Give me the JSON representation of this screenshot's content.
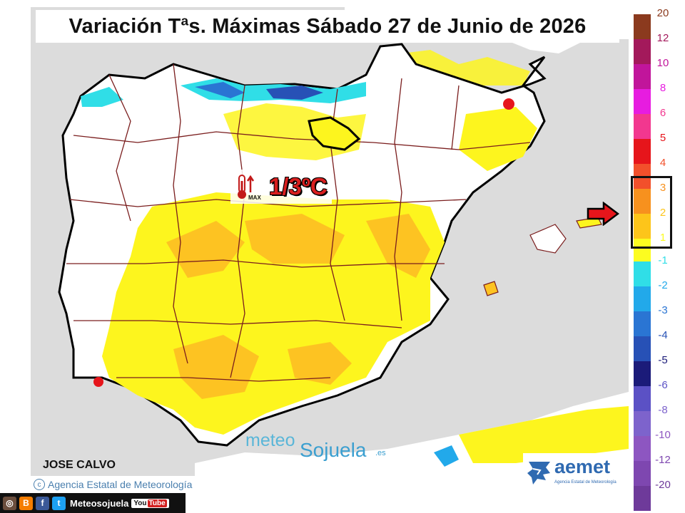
{
  "title": "Variación Tªs. Máximas Sábado 27 de Junio de 2026",
  "badge": {
    "icon": "thermometer-max-icon",
    "icon_label": "MAX",
    "value": "1/3ºC"
  },
  "author": "JOSE CALVO",
  "copyright": {
    "symbol": "c",
    "text": "Agencia Estatal de Meteorología"
  },
  "brand": {
    "part1": "meteo",
    "part2": "Sojuela",
    "suffix": ".es"
  },
  "aemet": {
    "name": "aemet",
    "subtitle": "Agencia Estatal de Meteorología"
  },
  "social": {
    "handle": "Meteosojuela",
    "youtube_you": "You",
    "youtube_tube": "Tube",
    "icons": [
      "instagram-icon",
      "blogger-icon",
      "facebook-icon",
      "twitter-icon",
      "youtube-icon"
    ]
  },
  "legend_warm": [
    {
      "label": "20",
      "color": "#8b3a1e"
    },
    {
      "label": "12",
      "color": "#a3195b"
    },
    {
      "label": "10",
      "color": "#c1159b"
    },
    {
      "label": "8",
      "color": "#e71ce0"
    },
    {
      "label": "6",
      "color": "#f2378f"
    },
    {
      "label": "5",
      "color": "#e6151b"
    },
    {
      "label": "4",
      "color": "#f2502b"
    },
    {
      "label": "3",
      "color": "#f7911e"
    },
    {
      "label": "2",
      "color": "#fdc51a"
    },
    {
      "label": "1",
      "color": "#fcfc20"
    }
  ],
  "legend_cold": [
    {
      "label": "-1",
      "color": "#30dee7"
    },
    {
      "label": "-2",
      "color": "#22a9ea"
    },
    {
      "label": "-3",
      "color": "#2a75d3"
    },
    {
      "label": "-4",
      "color": "#2751b6"
    },
    {
      "label": "-5",
      "color": "#1b1b79"
    },
    {
      "label": "-6",
      "color": "#5b51c5"
    },
    {
      "label": "-8",
      "color": "#7d63cc"
    },
    {
      "label": "-10",
      "color": "#8d56c1"
    },
    {
      "label": "-12",
      "color": "#7e47b0"
    },
    {
      "label": "-20",
      "color": "#6e3a9a"
    }
  ],
  "highlighted_range": [
    "1",
    "3"
  ],
  "colors": {
    "sea": "#dcdcdc",
    "land": "#ffffff",
    "yellow": "#fdf51e",
    "orange": "#fdc322",
    "border": "#7a1d1d"
  }
}
